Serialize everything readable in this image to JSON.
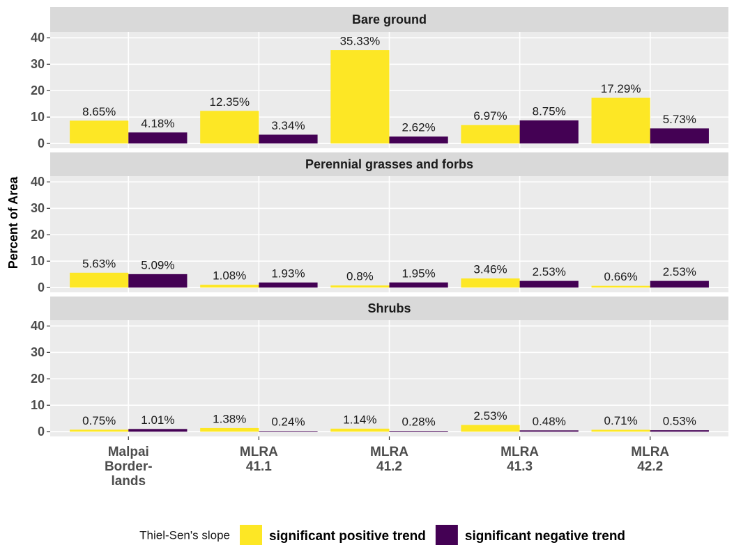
{
  "chart_data": {
    "type": "bar",
    "ylabel": "Percent of Area",
    "legend_title": "Thiel-Sen's slope",
    "legend_position": "bottom",
    "grid": true,
    "ylim": [
      -1.8,
      42.2
    ],
    "yticks": [
      0,
      10,
      20,
      30,
      40
    ],
    "categories": [
      "Malpai\nBorder-\nlands",
      "MLRA\n41.1",
      "MLRA\n41.2",
      "MLRA\n41.3",
      "MLRA\n42.2"
    ],
    "series": [
      {
        "name": "significant positive trend",
        "color": "#fde725"
      },
      {
        "name": "significant negative trend",
        "color": "#440154"
      }
    ],
    "panels": [
      {
        "title": "Bare ground",
        "series": [
          {
            "values": [
              8.65,
              12.35,
              35.33,
              6.97,
              17.29
            ],
            "value_labels": [
              "8.65%",
              "12.35%",
              "35.33%",
              "6.97%",
              "17.29%"
            ]
          },
          {
            "values": [
              4.18,
              3.34,
              2.62,
              8.75,
              5.73
            ],
            "value_labels": [
              "4.18%",
              "3.34%",
              "2.62%",
              "8.75%",
              "5.73%"
            ]
          }
        ]
      },
      {
        "title": "Perennial grasses and forbs",
        "series": [
          {
            "values": [
              5.63,
              1.08,
              0.8,
              3.46,
              0.66
            ],
            "value_labels": [
              "5.63%",
              "1.08%",
              "0.8%",
              "3.46%",
              "0.66%"
            ]
          },
          {
            "values": [
              5.09,
              1.93,
              1.95,
              2.53,
              2.53
            ],
            "value_labels": [
              "5.09%",
              "1.93%",
              "1.95%",
              "2.53%",
              "2.53%"
            ]
          }
        ]
      },
      {
        "title": "Shrubs",
        "series": [
          {
            "values": [
              0.75,
              1.38,
              1.14,
              2.53,
              0.71
            ],
            "value_labels": [
              "0.75%",
              "1.38%",
              "1.14%",
              "2.53%",
              "0.71%"
            ]
          },
          {
            "values": [
              1.01,
              0.24,
              0.28,
              0.48,
              0.53
            ],
            "value_labels": [
              "1.01%",
              "0.24%",
              "0.28%",
              "0.48%",
              "0.53%"
            ]
          }
        ]
      }
    ]
  }
}
